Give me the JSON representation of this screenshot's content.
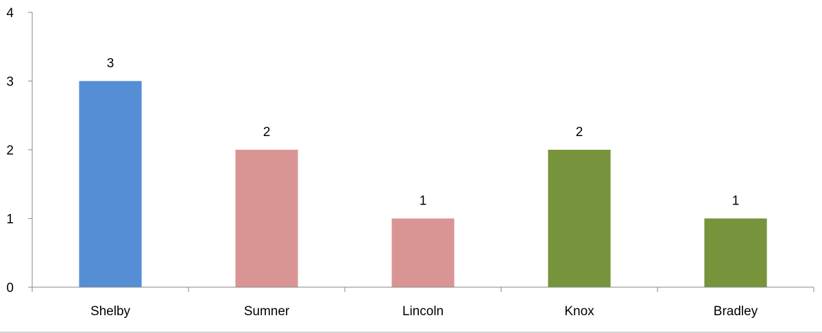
{
  "chart_data": {
    "type": "bar",
    "title": "",
    "xlabel": "",
    "ylabel": "",
    "categories": [
      "Shelby",
      "Sumner",
      "Lincoln",
      "Knox",
      "Bradley"
    ],
    "values": [
      3,
      2,
      1,
      2,
      1
    ],
    "colors": [
      "#558ed5",
      "#d99594",
      "#d99594",
      "#77933c",
      "#77933c"
    ],
    "data_labels": [
      "3",
      "2",
      "1",
      "2",
      "1"
    ],
    "ylim": [
      0,
      4
    ],
    "yticks": [
      "0",
      "1",
      "2",
      "3",
      "4"
    ],
    "grid": false,
    "legend": "none"
  }
}
